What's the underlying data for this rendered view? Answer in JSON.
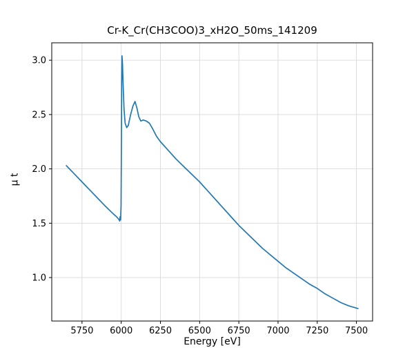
{
  "chart_data": {
    "type": "line",
    "title": "Cr-K_Cr(CH3COO)3_xH2O_50ms_141209",
    "xlabel": "Energy [eV]",
    "ylabel": "μ t",
    "xlim": [
      5557,
      7603
    ],
    "ylim": [
      0.6,
      3.16
    ],
    "xticks": [
      5750,
      6000,
      6250,
      6500,
      6750,
      7000,
      7250,
      7500
    ],
    "yticks": [
      1.0,
      1.5,
      2.0,
      2.5,
      3.0
    ],
    "grid": true,
    "legend_position": "none",
    "line_color": "#1f77b4",
    "grid_color": "#d9d9d9",
    "axis_color": "#000000",
    "series": [
      {
        "name": "mu_t_absorption",
        "x": [
          5650,
          5700,
          5750,
          5800,
          5850,
          5900,
          5950,
          5970,
          5985,
          5990,
          5993,
          5996,
          5999,
          6001,
          6003,
          6005,
          6008,
          6012,
          6018,
          6025,
          6035,
          6045,
          6060,
          6075,
          6088,
          6100,
          6112,
          6125,
          6140,
          6160,
          6180,
          6200,
          6225,
          6250,
          6300,
          6350,
          6400,
          6450,
          6500,
          6550,
          6600,
          6650,
          6700,
          6750,
          6800,
          6850,
          6900,
          6950,
          7000,
          7050,
          7100,
          7150,
          7200,
          7250,
          7300,
          7350,
          7400,
          7450,
          7510
        ],
        "y": [
          2.03,
          1.955,
          1.88,
          1.805,
          1.73,
          1.655,
          1.585,
          1.56,
          1.535,
          1.52,
          1.56,
          1.53,
          1.66,
          2.2,
          2.8,
          3.04,
          2.97,
          2.78,
          2.55,
          2.42,
          2.38,
          2.4,
          2.5,
          2.58,
          2.62,
          2.56,
          2.48,
          2.44,
          2.45,
          2.44,
          2.42,
          2.37,
          2.3,
          2.25,
          2.17,
          2.09,
          2.02,
          1.95,
          1.88,
          1.8,
          1.72,
          1.64,
          1.56,
          1.48,
          1.41,
          1.34,
          1.27,
          1.21,
          1.15,
          1.09,
          1.04,
          0.99,
          0.94,
          0.9,
          0.85,
          0.81,
          0.77,
          0.74,
          0.715
        ]
      }
    ]
  }
}
